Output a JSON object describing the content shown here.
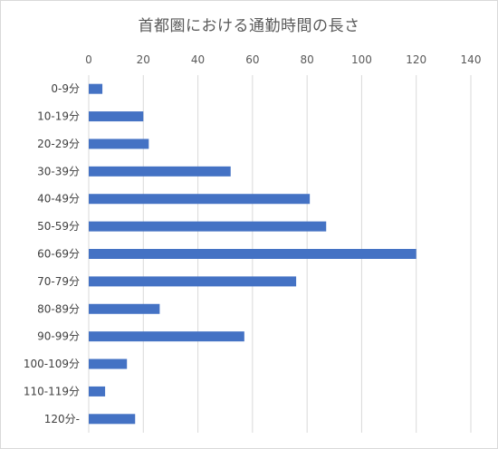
{
  "chart_data": {
    "type": "bar",
    "orientation": "horizontal",
    "title": "首都圏における通勤時間の長さ",
    "xlabel": "",
    "ylabel": "",
    "xlim": [
      0,
      140
    ],
    "x_ticks": [
      0,
      20,
      40,
      60,
      80,
      100,
      120,
      140
    ],
    "x_axis_position": "top",
    "grid": true,
    "legend": "none",
    "categories": [
      "0-9分",
      "10-19分",
      "20-29分",
      "30-39分",
      "40-49分",
      "50-59分",
      "60-69分",
      "70-79分",
      "80-89分",
      "90-99分",
      "100-109分",
      "110-119分",
      "120分-"
    ],
    "values": [
      5,
      20,
      22,
      52,
      81,
      87,
      120,
      76,
      26,
      57,
      14,
      6,
      17
    ],
    "bar_color": "#4472c4",
    "grid_color": "#d9d9d9"
  }
}
